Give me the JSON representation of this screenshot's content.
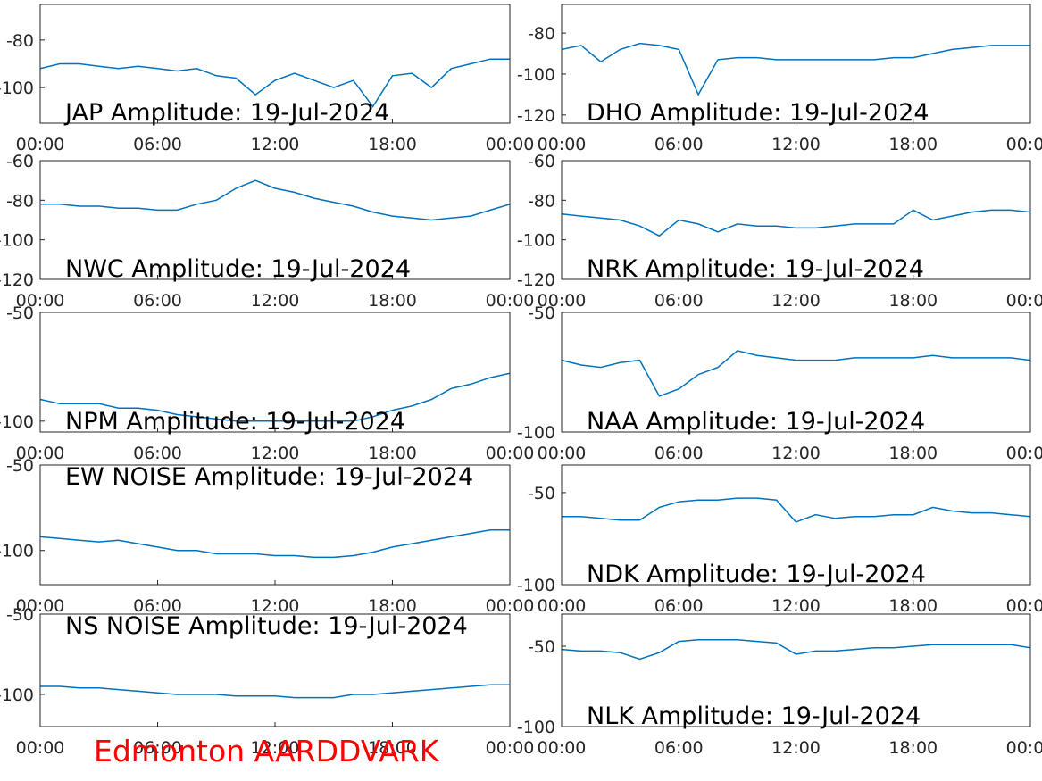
{
  "chart_data": [
    {
      "type": "line",
      "title": "JAP Amplitude: 19-Jul-2024",
      "color": "#0072bd",
      "x": [
        0,
        1,
        2,
        3,
        4,
        5,
        6,
        7,
        8,
        9,
        10,
        11,
        12,
        13,
        14,
        15,
        16,
        17,
        18,
        19,
        20,
        21,
        22,
        23,
        24
      ],
      "values": [
        -92,
        -90,
        -90,
        -91,
        -92,
        -91,
        -92,
        -93,
        -92,
        -95,
        -96,
        -103,
        -97,
        -94,
        -97,
        -100,
        -97,
        -108,
        -95,
        -94,
        -100,
        -92,
        -90,
        -88,
        -88
      ],
      "xlim": [
        0,
        24
      ],
      "xticks": [
        {
          "value": 0,
          "label": "00:00"
        },
        {
          "value": 6,
          "label": "06:00"
        },
        {
          "value": 12,
          "label": "12:00"
        },
        {
          "value": 18,
          "label": "18:00"
        },
        {
          "value": 24,
          "label": "00:00"
        }
      ],
      "ylim": [
        -115,
        -65
      ],
      "yticks": [
        -100,
        -80
      ]
    },
    {
      "type": "line",
      "title": "DHO Amplitude: 19-Jul-2024",
      "color": "#0072bd",
      "x": [
        0,
        1,
        2,
        3,
        4,
        5,
        6,
        7,
        8,
        9,
        10,
        11,
        12,
        13,
        14,
        15,
        16,
        17,
        18,
        19,
        20,
        21,
        22,
        23,
        24
      ],
      "values": [
        -88,
        -86,
        -94,
        -88,
        -85,
        -86,
        -88,
        -110,
        -93,
        -92,
        -92,
        -93,
        -93,
        -93,
        -93,
        -93,
        -93,
        -92,
        -92,
        -90,
        -88,
        -87,
        -86,
        -86,
        -86
      ],
      "xlim": [
        0,
        24
      ],
      "xticks": [
        {
          "value": 0,
          "label": "00:00"
        },
        {
          "value": 6,
          "label": "06:00"
        },
        {
          "value": 12,
          "label": "12:00"
        },
        {
          "value": 18,
          "label": "18:00"
        },
        {
          "value": 24,
          "label": "00:00"
        }
      ],
      "ylim": [
        -124,
        -66
      ],
      "yticks": [
        -120,
        -100,
        -80
      ]
    },
    {
      "type": "line",
      "title": "NWC Amplitude: 19-Jul-2024",
      "color": "#0072bd",
      "x": [
        0,
        1,
        2,
        3,
        4,
        5,
        6,
        7,
        8,
        9,
        10,
        11,
        12,
        13,
        14,
        15,
        16,
        17,
        18,
        19,
        20,
        21,
        22,
        23,
        24
      ],
      "values": [
        -82,
        -82,
        -83,
        -83,
        -84,
        -84,
        -85,
        -85,
        -82,
        -80,
        -74,
        -70,
        -74,
        -76,
        -79,
        -81,
        -83,
        -86,
        -88,
        -89,
        -90,
        -89,
        -88,
        -85,
        -82
      ],
      "xlim": [
        0,
        24
      ],
      "xticks": [
        {
          "value": 0,
          "label": "00:00"
        },
        {
          "value": 6,
          "label": "06:00"
        },
        {
          "value": 12,
          "label": "12:00"
        },
        {
          "value": 18,
          "label": "18:00"
        },
        {
          "value": 24,
          "label": "00:00"
        }
      ],
      "ylim": [
        -120,
        -60
      ],
      "yticks": [
        -120,
        -100,
        -80,
        -60
      ]
    },
    {
      "type": "line",
      "title": "NRK Amplitude: 19-Jul-2024",
      "color": "#0072bd",
      "x": [
        0,
        1,
        2,
        3,
        4,
        5,
        6,
        7,
        8,
        9,
        10,
        11,
        12,
        13,
        14,
        15,
        16,
        17,
        18,
        19,
        20,
        21,
        22,
        23,
        24
      ],
      "values": [
        -87,
        -88,
        -89,
        -90,
        -93,
        -98,
        -90,
        -92,
        -96,
        -92,
        -93,
        -93,
        -94,
        -94,
        -93,
        -92,
        -92,
        -92,
        -85,
        -90,
        -88,
        -86,
        -85,
        -85,
        -86
      ],
      "xlim": [
        0,
        24
      ],
      "xticks": [
        {
          "value": 0,
          "label": "00:00"
        },
        {
          "value": 6,
          "label": "06:00"
        },
        {
          "value": 12,
          "label": "12:00"
        },
        {
          "value": 18,
          "label": "18:00"
        },
        {
          "value": 24,
          "label": "00:00"
        }
      ],
      "ylim": [
        -120,
        -60
      ],
      "yticks": [
        -120,
        -100,
        -80,
        -60
      ]
    },
    {
      "type": "line",
      "title": "NPM Amplitude: 19-Jul-2024",
      "color": "#0072bd",
      "x": [
        0,
        1,
        2,
        3,
        4,
        5,
        6,
        7,
        8,
        9,
        10,
        11,
        12,
        13,
        14,
        15,
        16,
        17,
        18,
        19,
        20,
        21,
        22,
        23,
        24
      ],
      "values": [
        -90,
        -92,
        -92,
        -92,
        -94,
        -94,
        -95,
        -97,
        -98,
        -99,
        -100,
        -100,
        -100,
        -100,
        -100,
        -100,
        -100,
        -98,
        -95,
        -93,
        -90,
        -85,
        -83,
        -80,
        -78
      ],
      "xlim": [
        0,
        24
      ],
      "xticks": [
        {
          "value": 0,
          "label": "00:00"
        },
        {
          "value": 6,
          "label": "06:00"
        },
        {
          "value": 12,
          "label": "12:00"
        },
        {
          "value": 18,
          "label": "18:00"
        },
        {
          "value": 24,
          "label": "00:00"
        }
      ],
      "ylim": [
        -105,
        -50
      ],
      "yticks": [
        -100,
        -50
      ]
    },
    {
      "type": "line",
      "title": "NAA Amplitude: 19-Jul-2024",
      "color": "#0072bd",
      "x": [
        0,
        1,
        2,
        3,
        4,
        5,
        6,
        7,
        8,
        9,
        10,
        11,
        12,
        13,
        14,
        15,
        16,
        17,
        18,
        19,
        20,
        21,
        22,
        23,
        24
      ],
      "values": [
        -70,
        -72,
        -73,
        -71,
        -70,
        -85,
        -82,
        -76,
        -73,
        -66,
        -68,
        -69,
        -70,
        -70,
        -70,
        -69,
        -69,
        -69,
        -69,
        -68,
        -69,
        -69,
        -69,
        -69,
        -70
      ],
      "xlim": [
        0,
        24
      ],
      "xticks": [
        {
          "value": 0,
          "label": "00:00"
        },
        {
          "value": 6,
          "label": "06:00"
        },
        {
          "value": 12,
          "label": "12:00"
        },
        {
          "value": 18,
          "label": "18:00"
        },
        {
          "value": 24,
          "label": "00:00"
        }
      ],
      "ylim": [
        -100,
        -50
      ],
      "yticks": [
        -100,
        -50
      ]
    },
    {
      "type": "line",
      "title": "EW NOISE Amplitude: 19-Jul-2024",
      "color": "#0072bd",
      "x": [
        0,
        1,
        2,
        3,
        4,
        5,
        6,
        7,
        8,
        9,
        10,
        11,
        12,
        13,
        14,
        15,
        16,
        17,
        18,
        19,
        20,
        21,
        22,
        23,
        24
      ],
      "values": [
        -92,
        -93,
        -94,
        -95,
        -94,
        -96,
        -98,
        -100,
        -100,
        -102,
        -102,
        -102,
        -103,
        -103,
        -104,
        -104,
        -103,
        -101,
        -98,
        -96,
        -94,
        -92,
        -90,
        -88,
        -88
      ],
      "xlim": [
        0,
        24
      ],
      "xticks": [
        {
          "value": 0,
          "label": "00:00"
        },
        {
          "value": 6,
          "label": "06:00"
        },
        {
          "value": 12,
          "label": "12:00"
        },
        {
          "value": 18,
          "label": "18:00"
        },
        {
          "value": 24,
          "label": "00:00"
        }
      ],
      "ylim": [
        -120,
        -50
      ],
      "yticks": [
        -100,
        -50
      ]
    },
    {
      "type": "line",
      "title": "NDK Amplitude: 19-Jul-2024",
      "color": "#0072bd",
      "x": [
        0,
        1,
        2,
        3,
        4,
        5,
        6,
        7,
        8,
        9,
        10,
        11,
        12,
        13,
        14,
        15,
        16,
        17,
        18,
        19,
        20,
        21,
        22,
        23,
        24
      ],
      "values": [
        -63,
        -63,
        -64,
        -65,
        -65,
        -58,
        -55,
        -54,
        -54,
        -53,
        -53,
        -54,
        -66,
        -62,
        -64,
        -63,
        -63,
        -62,
        -62,
        -58,
        -60,
        -61,
        -61,
        -62,
        -63
      ],
      "xlim": [
        0,
        24
      ],
      "xticks": [
        {
          "value": 0,
          "label": "00:00"
        },
        {
          "value": 6,
          "label": "06:00"
        },
        {
          "value": 12,
          "label": "12:00"
        },
        {
          "value": 18,
          "label": "18:00"
        },
        {
          "value": 24,
          "label": "00:00"
        }
      ],
      "ylim": [
        -100,
        -35
      ],
      "yticks": [
        -100,
        -50
      ]
    },
    {
      "type": "line",
      "title": "NS NOISE Amplitude: 19-Jul-2024",
      "color": "#0072bd",
      "x": [
        0,
        1,
        2,
        3,
        4,
        5,
        6,
        7,
        8,
        9,
        10,
        11,
        12,
        13,
        14,
        15,
        16,
        17,
        18,
        19,
        20,
        21,
        22,
        23,
        24
      ],
      "values": [
        -95,
        -95,
        -96,
        -96,
        -97,
        -98,
        -99,
        -100,
        -100,
        -100,
        -101,
        -101,
        -101,
        -102,
        -102,
        -102,
        -100,
        -100,
        -99,
        -98,
        -97,
        -96,
        -95,
        -94,
        -94
      ],
      "xlim": [
        0,
        24
      ],
      "xticks": [
        {
          "value": 0,
          "label": "00:00"
        },
        {
          "value": 6,
          "label": "06:00"
        },
        {
          "value": 12,
          "label": "12:00"
        },
        {
          "value": 18,
          "label": "18:00"
        },
        {
          "value": 24,
          "label": "00:00"
        }
      ],
      "ylim": [
        -120,
        -50
      ],
      "yticks": [
        -100,
        -50
      ]
    },
    {
      "type": "line",
      "title": "NLK Amplitude: 19-Jul-2024",
      "color": "#0072bd",
      "x": [
        0,
        1,
        2,
        3,
        4,
        5,
        6,
        7,
        8,
        9,
        10,
        11,
        12,
        13,
        14,
        15,
        16,
        17,
        18,
        19,
        20,
        21,
        22,
        23,
        24
      ],
      "values": [
        -52,
        -53,
        -53,
        -54,
        -58,
        -54,
        -47,
        -46,
        -46,
        -46,
        -47,
        -48,
        -55,
        -53,
        -53,
        -52,
        -51,
        -51,
        -50,
        -49,
        -49,
        -49,
        -49,
        -49,
        -51
      ],
      "xlim": [
        0,
        24
      ],
      "xticks": [
        {
          "value": 0,
          "label": "00:00"
        },
        {
          "value": 6,
          "label": "06:00"
        },
        {
          "value": 12,
          "label": "12:00"
        },
        {
          "value": 18,
          "label": "18:00"
        },
        {
          "value": 24,
          "label": "00:00"
        }
      ],
      "ylim": [
        -100,
        -30
      ],
      "yticks": [
        -100,
        -50
      ]
    }
  ],
  "footer": "Edmonton AARDDVARK"
}
